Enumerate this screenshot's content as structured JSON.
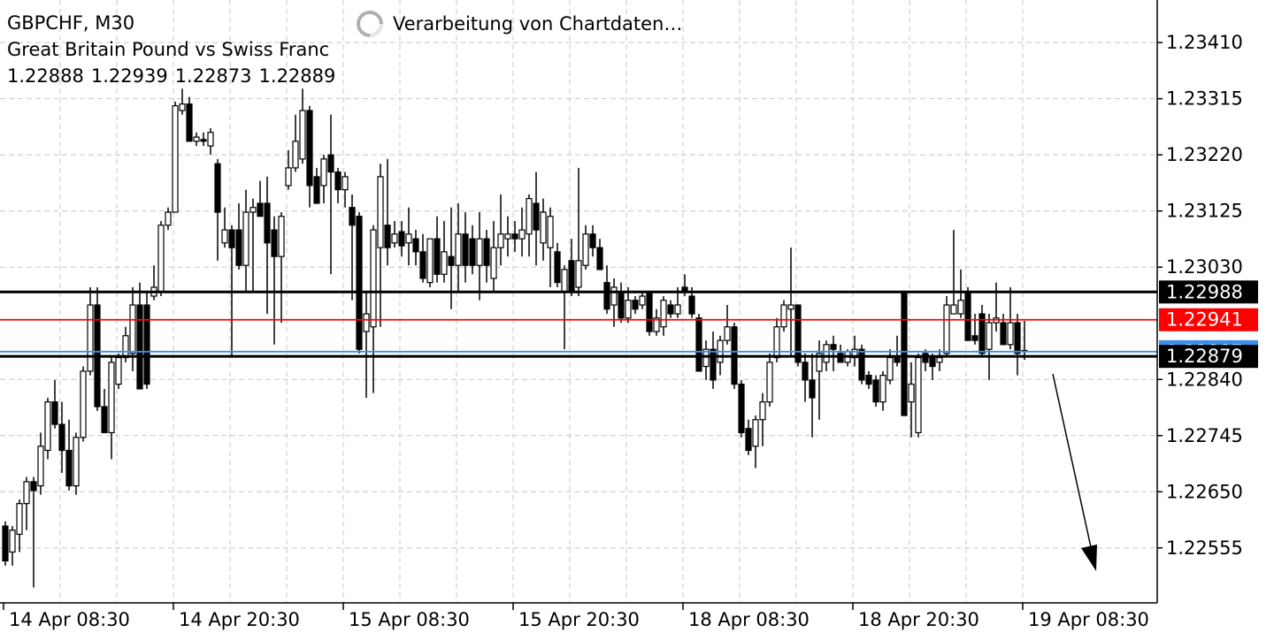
{
  "header": {
    "symbol": "GBPCHF, M30",
    "description": "Great Britain Pound vs Swiss Franc",
    "status": "Verarbeitung von Chartdaten…"
  },
  "chart_data": {
    "type": "candlestick",
    "categories": [
      "14 Apr 08:30",
      null,
      null,
      null,
      null,
      null,
      null,
      null,
      null,
      null,
      null,
      null,
      null,
      null,
      null,
      null,
      null,
      null,
      null,
      null,
      null,
      null,
      null,
      null,
      "14 Apr 20:30",
      null,
      null,
      null,
      null,
      null,
      null,
      null,
      null,
      null,
      null,
      null,
      null,
      null,
      null,
      null,
      null,
      null,
      null,
      null,
      null,
      null,
      null,
      null,
      "15 Apr 08:30",
      null,
      null,
      null,
      null,
      null,
      null,
      null,
      null,
      null,
      null,
      null,
      null,
      null,
      null,
      null,
      null,
      null,
      null,
      null,
      null,
      null,
      null,
      null,
      "15 Apr 20:30",
      null,
      null,
      null,
      null,
      null,
      null,
      null,
      null,
      null,
      null,
      null,
      null,
      null,
      null,
      null,
      null,
      null,
      null,
      null,
      null,
      null,
      null,
      null,
      "18 Apr 08:30",
      null,
      null,
      null,
      null,
      null,
      null,
      null,
      null,
      null,
      null,
      null,
      null,
      null,
      null,
      null,
      null,
      null,
      null,
      null,
      null,
      null,
      null,
      null,
      "18 Apr 20:30",
      null,
      null,
      null,
      null,
      null,
      null,
      null,
      null,
      null,
      null,
      null,
      null,
      null,
      null,
      null,
      null,
      null,
      null,
      null,
      null,
      null,
      null,
      null,
      "19 Apr 08:30"
    ],
    "open": [
      1.22592,
      1.22548,
      1.22578,
      1.2263,
      1.22667,
      1.2266,
      1.2272,
      1.22802,
      1.22764,
      1.2272,
      1.2266,
      1.22742,
      1.22854,
      1.22966,
      1.22794,
      1.2275,
      1.22832,
      1.22877,
      1.22884,
      1.22966,
      1.22966,
      1.22981,
      1.22989,
      1.23101,
      1.23123,
      1.23295,
      1.23306,
      1.23243,
      1.23246,
      1.23235,
      1.23205,
      1.23071,
      1.23093,
      1.23093,
      1.23033,
      1.23123,
      1.23138,
      1.23138,
      1.23093,
      1.23048,
      1.23168,
      1.23198,
      1.23213,
      1.23295,
      1.23183,
      1.23168,
      1.2322,
      1.23191,
      1.23161,
      1.23131,
      1.23116,
      1.22921,
      1.22929,
      1.23063,
      1.23101,
      1.23071,
      1.2309,
      1.23071,
      1.23078,
      1.23056,
      1.23004,
      1.23078,
      1.23018,
      1.23048,
      1.23033,
      1.23086,
      1.23078,
      1.23033,
      1.23078,
      1.23011,
      1.23063,
      1.23078,
      1.23086,
      1.23078,
      1.23086,
      1.23138,
      1.23071,
      1.23063,
      1.23056,
      1.22989,
      1.23041,
      1.22996,
      1.23033,
      1.23086,
      1.23063,
      1.23004,
      1.22966,
      1.22989,
      1.22944,
      1.22974,
      1.22966,
      1.22989,
      1.22921,
      1.22929,
      1.22966,
      1.22951,
      1.22996,
      1.22981,
      1.22944,
      1.22862,
      1.22891,
      1.22869,
      1.22906,
      1.22929,
      1.22832,
      1.22757,
      1.22727,
      1.22772,
      1.22802,
      1.22877,
      1.22929,
      1.22959,
      1.22966,
      1.22869,
      1.22839,
      1.22854,
      1.22869,
      1.22899,
      1.22884,
      1.22869,
      1.22877,
      1.22891,
      1.22847,
      1.22839,
      1.22802,
      1.22839,
      1.22877,
      1.22989,
      1.22802,
      1.2275,
      1.22884,
      1.22877,
      1.22869,
      1.22884,
      1.22951,
      1.22951,
      1.22989,
      1.22914,
      1.22951,
      1.22891,
      1.22936,
      1.22936,
      1.22899,
      1.22936,
      1.22888
    ],
    "high": [
      1.226,
      1.22592,
      1.22637,
      1.22675,
      1.22675,
      1.2275,
      1.22809,
      1.22839,
      1.22802,
      1.22772,
      1.2275,
      1.22862,
      1.22996,
      1.22996,
      1.22824,
      1.22877,
      1.22884,
      1.22929,
      1.22996,
      1.23004,
      1.22989,
      1.23033,
      1.23108,
      1.23131,
      1.2331,
      1.23332,
      1.23318,
      1.23258,
      1.23258,
      1.23265,
      1.23213,
      1.23131,
      1.23101,
      1.23138,
      1.23161,
      1.23146,
      1.23176,
      1.23183,
      1.23116,
      1.23123,
      1.23228,
      1.23288,
      1.23332,
      1.23303,
      1.23198,
      1.2322,
      1.23288,
      1.23198,
      1.23191,
      1.23153,
      1.23123,
      1.22989,
      1.23101,
      1.23205,
      1.23213,
      1.23108,
      1.23108,
      1.23131,
      1.23093,
      1.23086,
      1.23078,
      1.23116,
      1.23108,
      1.23131,
      1.23138,
      1.23123,
      1.23101,
      1.23123,
      1.23093,
      1.23108,
      1.23153,
      1.23116,
      1.23108,
      1.23131,
      1.23153,
      1.23191,
      1.23146,
      1.23131,
      1.23071,
      1.23033,
      1.23078,
      1.23198,
      1.23101,
      1.23101,
      1.23078,
      1.23033,
      1.23011,
      1.23004,
      1.22996,
      1.22981,
      1.22989,
      1.22989,
      1.22959,
      1.22981,
      1.22974,
      1.22996,
      1.23018,
      1.22996,
      1.22951,
      1.22906,
      1.22921,
      1.22914,
      1.22966,
      1.22936,
      1.22839,
      1.22772,
      1.22779,
      1.22817,
      1.22884,
      1.22944,
      1.22974,
      1.23063,
      1.22966,
      1.22884,
      1.22884,
      1.22906,
      1.22906,
      1.22914,
      1.22899,
      1.22891,
      1.22914,
      1.22899,
      1.22854,
      1.22847,
      1.22854,
      1.22891,
      1.22914,
      1.22989,
      1.22869,
      1.22884,
      1.22891,
      1.22884,
      1.22891,
      1.22981,
      1.23093,
      1.23026,
      1.22996,
      1.22951,
      1.22966,
      1.22951,
      1.23004,
      1.22951,
      1.22996,
      1.22951,
      1.22939
    ],
    "low": [
      1.22525,
      1.22525,
      1.22548,
      1.22585,
      1.22488,
      1.22645,
      1.22705,
      1.22757,
      1.22682,
      1.22652,
      1.22645,
      1.22735,
      1.22847,
      1.22787,
      1.2275,
      1.22705,
      1.22824,
      1.22869,
      1.22854,
      1.22824,
      1.22824,
      1.22974,
      1.22981,
      1.23093,
      1.23123,
      1.23288,
      1.23243,
      1.23235,
      1.23235,
      1.2322,
      1.23041,
      1.23063,
      1.22877,
      1.23026,
      1.22989,
      1.22989,
      1.23116,
      1.22951,
      1.22899,
      1.22936,
      1.23161,
      1.23191,
      1.23205,
      1.23131,
      1.23138,
      1.23138,
      1.23018,
      1.23138,
      1.23131,
      1.22974,
      1.22884,
      1.22809,
      1.22817,
      1.22929,
      1.23033,
      1.23063,
      1.23048,
      1.23033,
      1.23033,
      1.23004,
      1.22996,
      1.23004,
      1.23004,
      1.22959,
      1.22989,
      1.23004,
      1.23018,
      1.22974,
      1.23004,
      1.22989,
      1.23033,
      1.23048,
      1.23056,
      1.23048,
      1.23048,
      1.23033,
      1.23041,
      1.22996,
      1.22996,
      1.22891,
      1.22981,
      1.22981,
      1.23026,
      1.23048,
      1.23026,
      1.22951,
      1.22929,
      1.22936,
      1.22936,
      1.22951,
      1.22959,
      1.22914,
      1.22914,
      1.22914,
      1.22944,
      1.22944,
      1.22981,
      1.22944,
      1.22854,
      1.22839,
      1.22824,
      1.22847,
      1.22899,
      1.22824,
      1.22742,
      1.22712,
      1.2269,
      1.22727,
      1.22794,
      1.22869,
      1.22921,
      1.22877,
      1.22862,
      1.22802,
      1.22742,
      1.22772,
      1.22854,
      1.22854,
      1.22869,
      1.22862,
      1.22862,
      1.22832,
      1.22824,
      1.22794,
      1.22787,
      1.22832,
      1.22862,
      1.22779,
      1.22742,
      1.22742,
      1.22854,
      1.22839,
      1.22854,
      1.22877,
      1.22951,
      1.22944,
      1.22906,
      1.22899,
      1.22877,
      1.22839,
      1.22921,
      1.22899,
      1.22891,
      1.22847,
      1.22873
    ],
    "close": [
      1.22533,
      1.22585,
      1.2263,
      1.22667,
      1.22652,
      1.22727,
      1.22802,
      1.22764,
      1.2272,
      1.2266,
      1.22742,
      1.22854,
      1.22966,
      1.22794,
      1.2275,
      1.22869,
      1.22877,
      1.22914,
      1.22966,
      1.22824,
      1.22832,
      1.22996,
      1.23101,
      1.23123,
      1.23303,
      1.23306,
      1.23243,
      1.2325,
      1.23243,
      1.23258,
      1.23123,
      1.23093,
      1.23063,
      1.23033,
      1.23123,
      1.23131,
      1.23116,
      1.23071,
      1.23048,
      1.23116,
      1.23198,
      1.23243,
      1.23295,
      1.23168,
      1.23138,
      1.23213,
      1.23191,
      1.23161,
      1.23183,
      1.23101,
      1.22891,
      1.22951,
      1.23093,
      1.23183,
      1.23063,
      1.23086,
      1.23066,
      1.23086,
      1.23056,
      1.23011,
      1.23078,
      1.23018,
      1.23056,
      1.23033,
      1.23086,
      1.23033,
      1.23033,
      1.23078,
      1.23033,
      1.23063,
      1.23086,
      1.23086,
      1.23078,
      1.23093,
      1.23146,
      1.23093,
      1.23123,
      1.23116,
      1.23004,
      1.23026,
      1.22989,
      1.23041,
      1.23086,
      1.23063,
      1.23026,
      1.22959,
      1.22996,
      1.22944,
      1.22974,
      1.22959,
      1.22981,
      1.22921,
      1.22944,
      1.22974,
      1.22951,
      1.22966,
      1.22989,
      1.22951,
      1.22854,
      1.22891,
      1.22839,
      1.22906,
      1.22929,
      1.22832,
      1.2275,
      1.2272,
      1.22772,
      1.22802,
      1.22869,
      1.22929,
      1.22966,
      1.22966,
      1.22869,
      1.22839,
      1.22809,
      1.22884,
      1.22899,
      1.22891,
      1.22869,
      1.22887,
      1.22891,
      1.22839,
      1.22832,
      1.22802,
      1.22847,
      1.22877,
      1.22869,
      1.22779,
      1.22832,
      1.22877,
      1.22869,
      1.22862,
      1.22877,
      1.22966,
      1.22966,
      1.22974,
      1.22906,
      1.22906,
      1.22884,
      1.22936,
      1.22944,
      1.22899,
      1.22936,
      1.22884,
      1.22889
    ],
    "up_color": "#ffffff",
    "down_color": "#000000",
    "ylim": [
      1.22462,
      1.23482
    ],
    "yticks": [
      {
        "value": 1.2341,
        "label": "1.23410"
      },
      1.23315,
      {
        "value": 1.2322,
        "label": "1.23220"
      },
      1.23125,
      {
        "value": 1.2303,
        "label": "1.23030"
      },
      {
        "value": 1.2284,
        "label": "1.22840"
      },
      1.22745,
      {
        "value": 1.2265,
        "label": "1.22650"
      },
      1.22555
    ],
    "grid": true,
    "price_lines": [
      {
        "value": 1.22887,
        "color": "#3d8ee8"
      },
      {
        "value": 1.22988,
        "color": "#000000"
      },
      {
        "value": 1.22941,
        "color": "#ff0000"
      },
      {
        "value": 1.22879,
        "color": "#000000"
      }
    ]
  }
}
